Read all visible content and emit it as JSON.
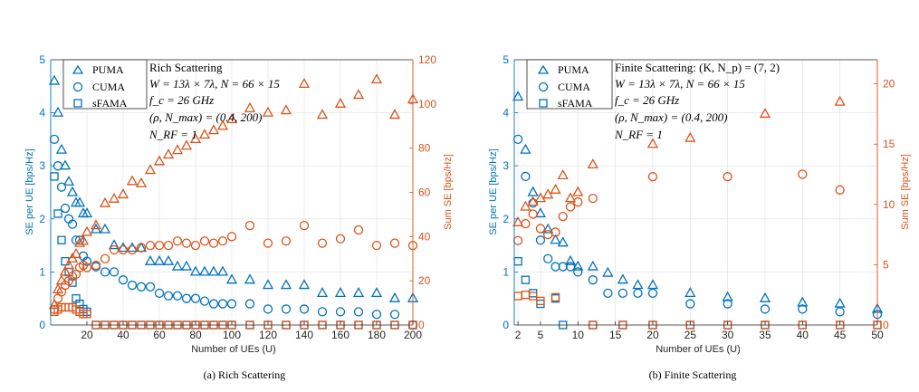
{
  "colors": {
    "blue": "#0072BD",
    "orange": "#D95319",
    "grid": "#e6e6e6",
    "axis": "#262626"
  },
  "chart_data": [
    {
      "type": "scatter",
      "caption": "(a) Rich Scattering",
      "xlabel": "Number of UEs (U)",
      "ylabel_left": "SE per UE [bps/Hz]",
      "ylabel_right": "Sum SE [bps/Hz]",
      "xlim": [
        0,
        200
      ],
      "ylim_left": [
        0,
        5
      ],
      "ylim_right": [
        0,
        120
      ],
      "xticks": [
        20,
        40,
        60,
        80,
        100,
        120,
        140,
        160,
        180,
        200
      ],
      "yticks_left": [
        0,
        1,
        2,
        3,
        4,
        5
      ],
      "yticks_right": [
        0,
        20,
        40,
        60,
        80,
        100,
        120
      ],
      "grid": true,
      "legend_position": "top-left",
      "annotations": [
        "Rich Scattering",
        "W = 13λ × 7λ, N = 66 × 15",
        "f_c = 26 GHz",
        "(ρ, N_max) = (0.4, 200)",
        "N_RF = 1"
      ],
      "x": [
        2,
        4,
        6,
        8,
        10,
        12,
        14,
        16,
        18,
        20,
        25,
        30,
        35,
        40,
        45,
        50,
        55,
        60,
        65,
        70,
        75,
        80,
        85,
        90,
        95,
        100,
        110,
        120,
        130,
        140,
        150,
        160,
        170,
        180,
        190,
        200
      ],
      "series": [
        {
          "name": "PUMA",
          "axis": "left",
          "marker": "triangle",
          "values": [
            4.6,
            4.0,
            3.3,
            3.0,
            2.7,
            2.5,
            2.3,
            2.3,
            2.1,
            2.1,
            1.8,
            1.8,
            1.5,
            1.45,
            1.45,
            1.45,
            1.2,
            1.2,
            1.2,
            1.1,
            1.1,
            1.0,
            1.0,
            1.0,
            1.0,
            0.85,
            0.85,
            0.75,
            0.75,
            0.75,
            0.6,
            0.6,
            0.6,
            0.6,
            0.5,
            0.5
          ]
        },
        {
          "name": "CUMA",
          "axis": "left",
          "marker": "circle",
          "values": [
            3.5,
            3.0,
            2.6,
            2.2,
            2.0,
            1.9,
            1.6,
            1.6,
            1.3,
            1.2,
            1.1,
            1.0,
            1.0,
            0.85,
            0.75,
            0.72,
            0.72,
            0.6,
            0.55,
            0.55,
            0.5,
            0.5,
            0.45,
            0.4,
            0.4,
            0.4,
            0.4,
            0.3,
            0.3,
            0.3,
            0.25,
            0.25,
            0.25,
            0.2,
            0.2,
            0.0
          ]
        },
        {
          "name": "sFAMA",
          "axis": "left",
          "marker": "square",
          "values": [
            2.8,
            2.1,
            1.6,
            1.2,
            1.0,
            0.8,
            0.5,
            0.4,
            0.3,
            0.25,
            0.0,
            0.0,
            0.0,
            0.0,
            0.0,
            0.0,
            0.0,
            0.0,
            0.0,
            0.0,
            0.0,
            0.0,
            0.0,
            0.0,
            0.0,
            0.0,
            0.0,
            0.0,
            0.0,
            0.0,
            0.0,
            0.0,
            0.0,
            0.0,
            0.0,
            0.0
          ]
        },
        {
          "name": "PUMA",
          "axis": "right",
          "marker": "triangle",
          "values": [
            9,
            16,
            20,
            24,
            27,
            30,
            32,
            37,
            38,
            42,
            45,
            55,
            57,
            59,
            65,
            64,
            70,
            74,
            77,
            79,
            81,
            84,
            86,
            88,
            90,
            93,
            98,
            96,
            97,
            109,
            95,
            100,
            104,
            111,
            95,
            102
          ]
        },
        {
          "name": "CUMA",
          "axis": "right",
          "marker": "circle",
          "values": [
            7,
            12,
            15,
            18,
            20,
            22,
            23,
            26,
            27,
            26,
            27,
            30,
            34,
            34,
            34,
            35,
            36,
            36,
            36,
            38,
            37,
            36,
            38,
            37,
            38,
            40,
            45,
            37,
            38,
            45,
            37,
            39,
            43,
            36,
            37,
            36
          ]
        },
        {
          "name": "sFAMA",
          "axis": "right",
          "marker": "square",
          "values": [
            6,
            7,
            8,
            8,
            8,
            8,
            7,
            6,
            5,
            5,
            0,
            0,
            0,
            0,
            0,
            0,
            0,
            0,
            0,
            0,
            0,
            0,
            0,
            0,
            0,
            0,
            0,
            0,
            0,
            0,
            0,
            0,
            0,
            0,
            0,
            0
          ]
        }
      ]
    },
    {
      "type": "scatter",
      "caption": "(b) Finite Scattering",
      "xlabel": "Number of UEs (U)",
      "ylabel_left": "SE per UE [bps/Hz]",
      "ylabel_right": "Sum SE [bps/Hz]",
      "xlim": [
        1.5,
        50
      ],
      "ylim_left": [
        0,
        5
      ],
      "ylim_right": [
        0,
        22
      ],
      "xticks": [
        2,
        5,
        10,
        15,
        20,
        25,
        30,
        35,
        40,
        45,
        50
      ],
      "yticks_left": [
        0,
        1,
        2,
        3,
        4,
        5
      ],
      "yticks_right": [
        0,
        5,
        10,
        15,
        20
      ],
      "grid": true,
      "legend_position": "top-left",
      "annotations": [
        "Finite Scattering: (K, N_p) = (7, 2)",
        "W = 13λ × 7λ, N = 66 × 15",
        "f_c = 26 GHz",
        "(ρ, N_max) = (0.4, 200)",
        "N_RF = 1"
      ],
      "x": [
        2,
        3,
        4,
        5,
        6,
        7,
        8,
        9,
        10,
        12,
        14,
        16,
        18,
        20,
        25,
        30,
        35,
        40,
        45,
        50
      ],
      "series": [
        {
          "name": "PUMA",
          "axis": "left",
          "marker": "triangle",
          "values": [
            4.3,
            3.3,
            2.5,
            2.1,
            1.8,
            1.6,
            1.55,
            1.2,
            1.1,
            1.1,
            0.98,
            0.85,
            0.75,
            0.75,
            0.6,
            0.52,
            0.5,
            0.42,
            0.4,
            0.3
          ]
        },
        {
          "name": "CUMA",
          "axis": "left",
          "marker": "circle",
          "values": [
            3.5,
            2.8,
            2.3,
            1.6,
            1.25,
            1.1,
            1.1,
            1.1,
            1.0,
            0.85,
            0.6,
            0.6,
            0.6,
            0.6,
            0.4,
            0.4,
            0.3,
            0.3,
            0.25,
            0.2
          ]
        },
        {
          "name": "sFAMA",
          "axis": "left",
          "marker": "square",
          "values": [
            1.2,
            0.85,
            0.6,
            0.4,
            null,
            0.5,
            0.0,
            null,
            null,
            0.0,
            null,
            0.0,
            null,
            0.0,
            0.0,
            0.0,
            0.0,
            0.0,
            0.0,
            0.0
          ]
        },
        {
          "name": "PUMA",
          "axis": "right",
          "marker": "triangle",
          "values": [
            8.5,
            9.8,
            10.2,
            10.5,
            10.8,
            11.2,
            12.4,
            10.5,
            11.0,
            13.3,
            null,
            null,
            null,
            15.0,
            15.5,
            null,
            17.5,
            null,
            18.5,
            null
          ]
        },
        {
          "name": "CUMA",
          "axis": "right",
          "marker": "circle",
          "values": [
            7.0,
            8.4,
            9.2,
            8.0,
            7.5,
            7.7,
            9.0,
            9.8,
            10.2,
            10.5,
            null,
            null,
            null,
            12.3,
            null,
            12.3,
            null,
            12.5,
            11.2,
            null
          ]
        },
        {
          "name": "sFAMA",
          "axis": "right",
          "marker": "square",
          "values": [
            2.4,
            2.5,
            2.4,
            2.0,
            null,
            2.3,
            null,
            null,
            null,
            0.0,
            null,
            0.0,
            null,
            0.0,
            0.0,
            0.0,
            0.0,
            0.0,
            0.0,
            0.0
          ]
        }
      ]
    }
  ]
}
